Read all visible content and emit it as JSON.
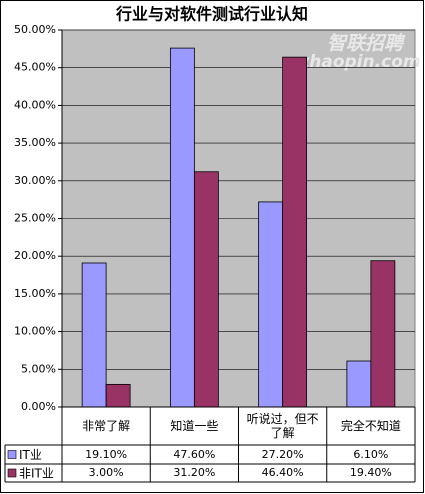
{
  "chart_data": {
    "type": "bar",
    "title": "行业与对软件测试行业认知",
    "categories": [
      "非常了解",
      "知道一些",
      "听说过，但不了解",
      "完全不知道"
    ],
    "series": [
      {
        "name": "IT业",
        "color": "#9999ff",
        "values": [
          19.1,
          47.6,
          27.2,
          6.1
        ],
        "value_labels": [
          "19.10%",
          "47.60%",
          "27.20%",
          "6.10%"
        ]
      },
      {
        "name": "非IT业",
        "color": "#993366",
        "values": [
          3.0,
          31.2,
          46.4,
          19.4
        ],
        "value_labels": [
          "3.00%",
          "31.20%",
          "46.40%",
          "19.40%"
        ]
      }
    ],
    "ylim": [
      0,
      50
    ],
    "yticks": [
      {
        "value": 0,
        "label": "0.00%"
      },
      {
        "value": 5,
        "label": "5.00%"
      },
      {
        "value": 10,
        "label": "10.00%"
      },
      {
        "value": 15,
        "label": "15.00%"
      },
      {
        "value": 20,
        "label": "20.00%"
      },
      {
        "value": 25,
        "label": "25.00%"
      },
      {
        "value": 30,
        "label": "30.00%"
      },
      {
        "value": 35,
        "label": "35.00%"
      },
      {
        "value": 40,
        "label": "40.00%"
      },
      {
        "value": 45,
        "label": "45.00%"
      },
      {
        "value": 50,
        "label": "50.00%"
      }
    ],
    "grid": true,
    "plot_background": "#c0c0c0",
    "watermark": {
      "brand": "智联招聘",
      "site": "zhaopin.com"
    }
  }
}
